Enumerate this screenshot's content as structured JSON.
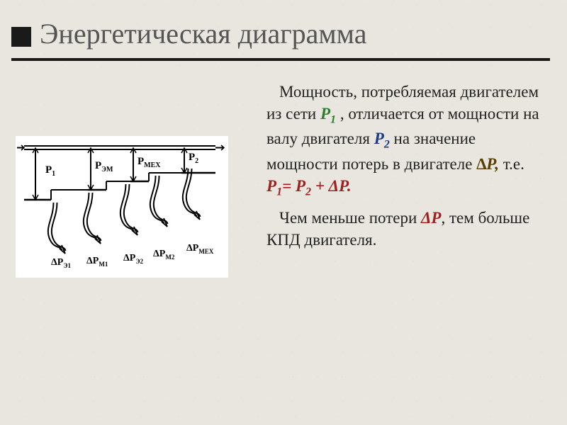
{
  "title": "Энергетическая диаграмма",
  "body": {
    "p1a": "Мощность, потребляемая двигателем из сети ",
    "P1": "Р",
    "P1sub": "1",
    "p1b": " , отличается от мощности на валу двигателя ",
    "P2": "Р",
    "P2sub": "2",
    "p1c": " на значение мощности потерь в двигателе  ",
    "dP": "∆Р,",
    "p1d": " т.е. ",
    "eq_P1": "Р",
    "eq_P1sub": "1",
    "eq_eq": "= ",
    "eq_P2": "Р",
    "eq_P2sub": "2",
    "eq_plus": " + ΔР.",
    "p2a": "Чем меньше потери ",
    "dP2": "ΔР",
    "p2b": ", тем больше КПД двигателя."
  },
  "diagram": {
    "top_labels": [
      "P",
      "P",
      "P",
      "P"
    ],
    "top_subs": [
      "1",
      "ЭМ",
      "МЕХ",
      "2"
    ],
    "bot_labels": [
      "ΔP",
      "ΔP",
      "ΔP",
      "ΔP",
      "ΔP"
    ],
    "bot_subs": [
      "Э1",
      "М1",
      "Э2",
      "М2",
      "МЕХ"
    ],
    "colors": {
      "line": "#000000",
      "bg": "#ffffff"
    },
    "geometry": {
      "topY": 22,
      "arrowLen": 14,
      "xTop": [
        34,
        112,
        172,
        244
      ],
      "yBottomTop": [
        98,
        84,
        72,
        60,
        50
      ],
      "lipW": 22,
      "xLbl": [
        48,
        118,
        178,
        250
      ],
      "yLblTop": [
        60,
        54,
        48,
        42
      ],
      "xBot": [
        62,
        112,
        164,
        206,
        252
      ],
      "yBotStart": [
        100,
        86,
        74,
        62,
        52
      ],
      "yBotLbl": [
        190,
        188,
        184,
        178,
        170
      ],
      "xBotLbl": [
        56,
        106,
        158,
        200,
        247
      ]
    }
  }
}
